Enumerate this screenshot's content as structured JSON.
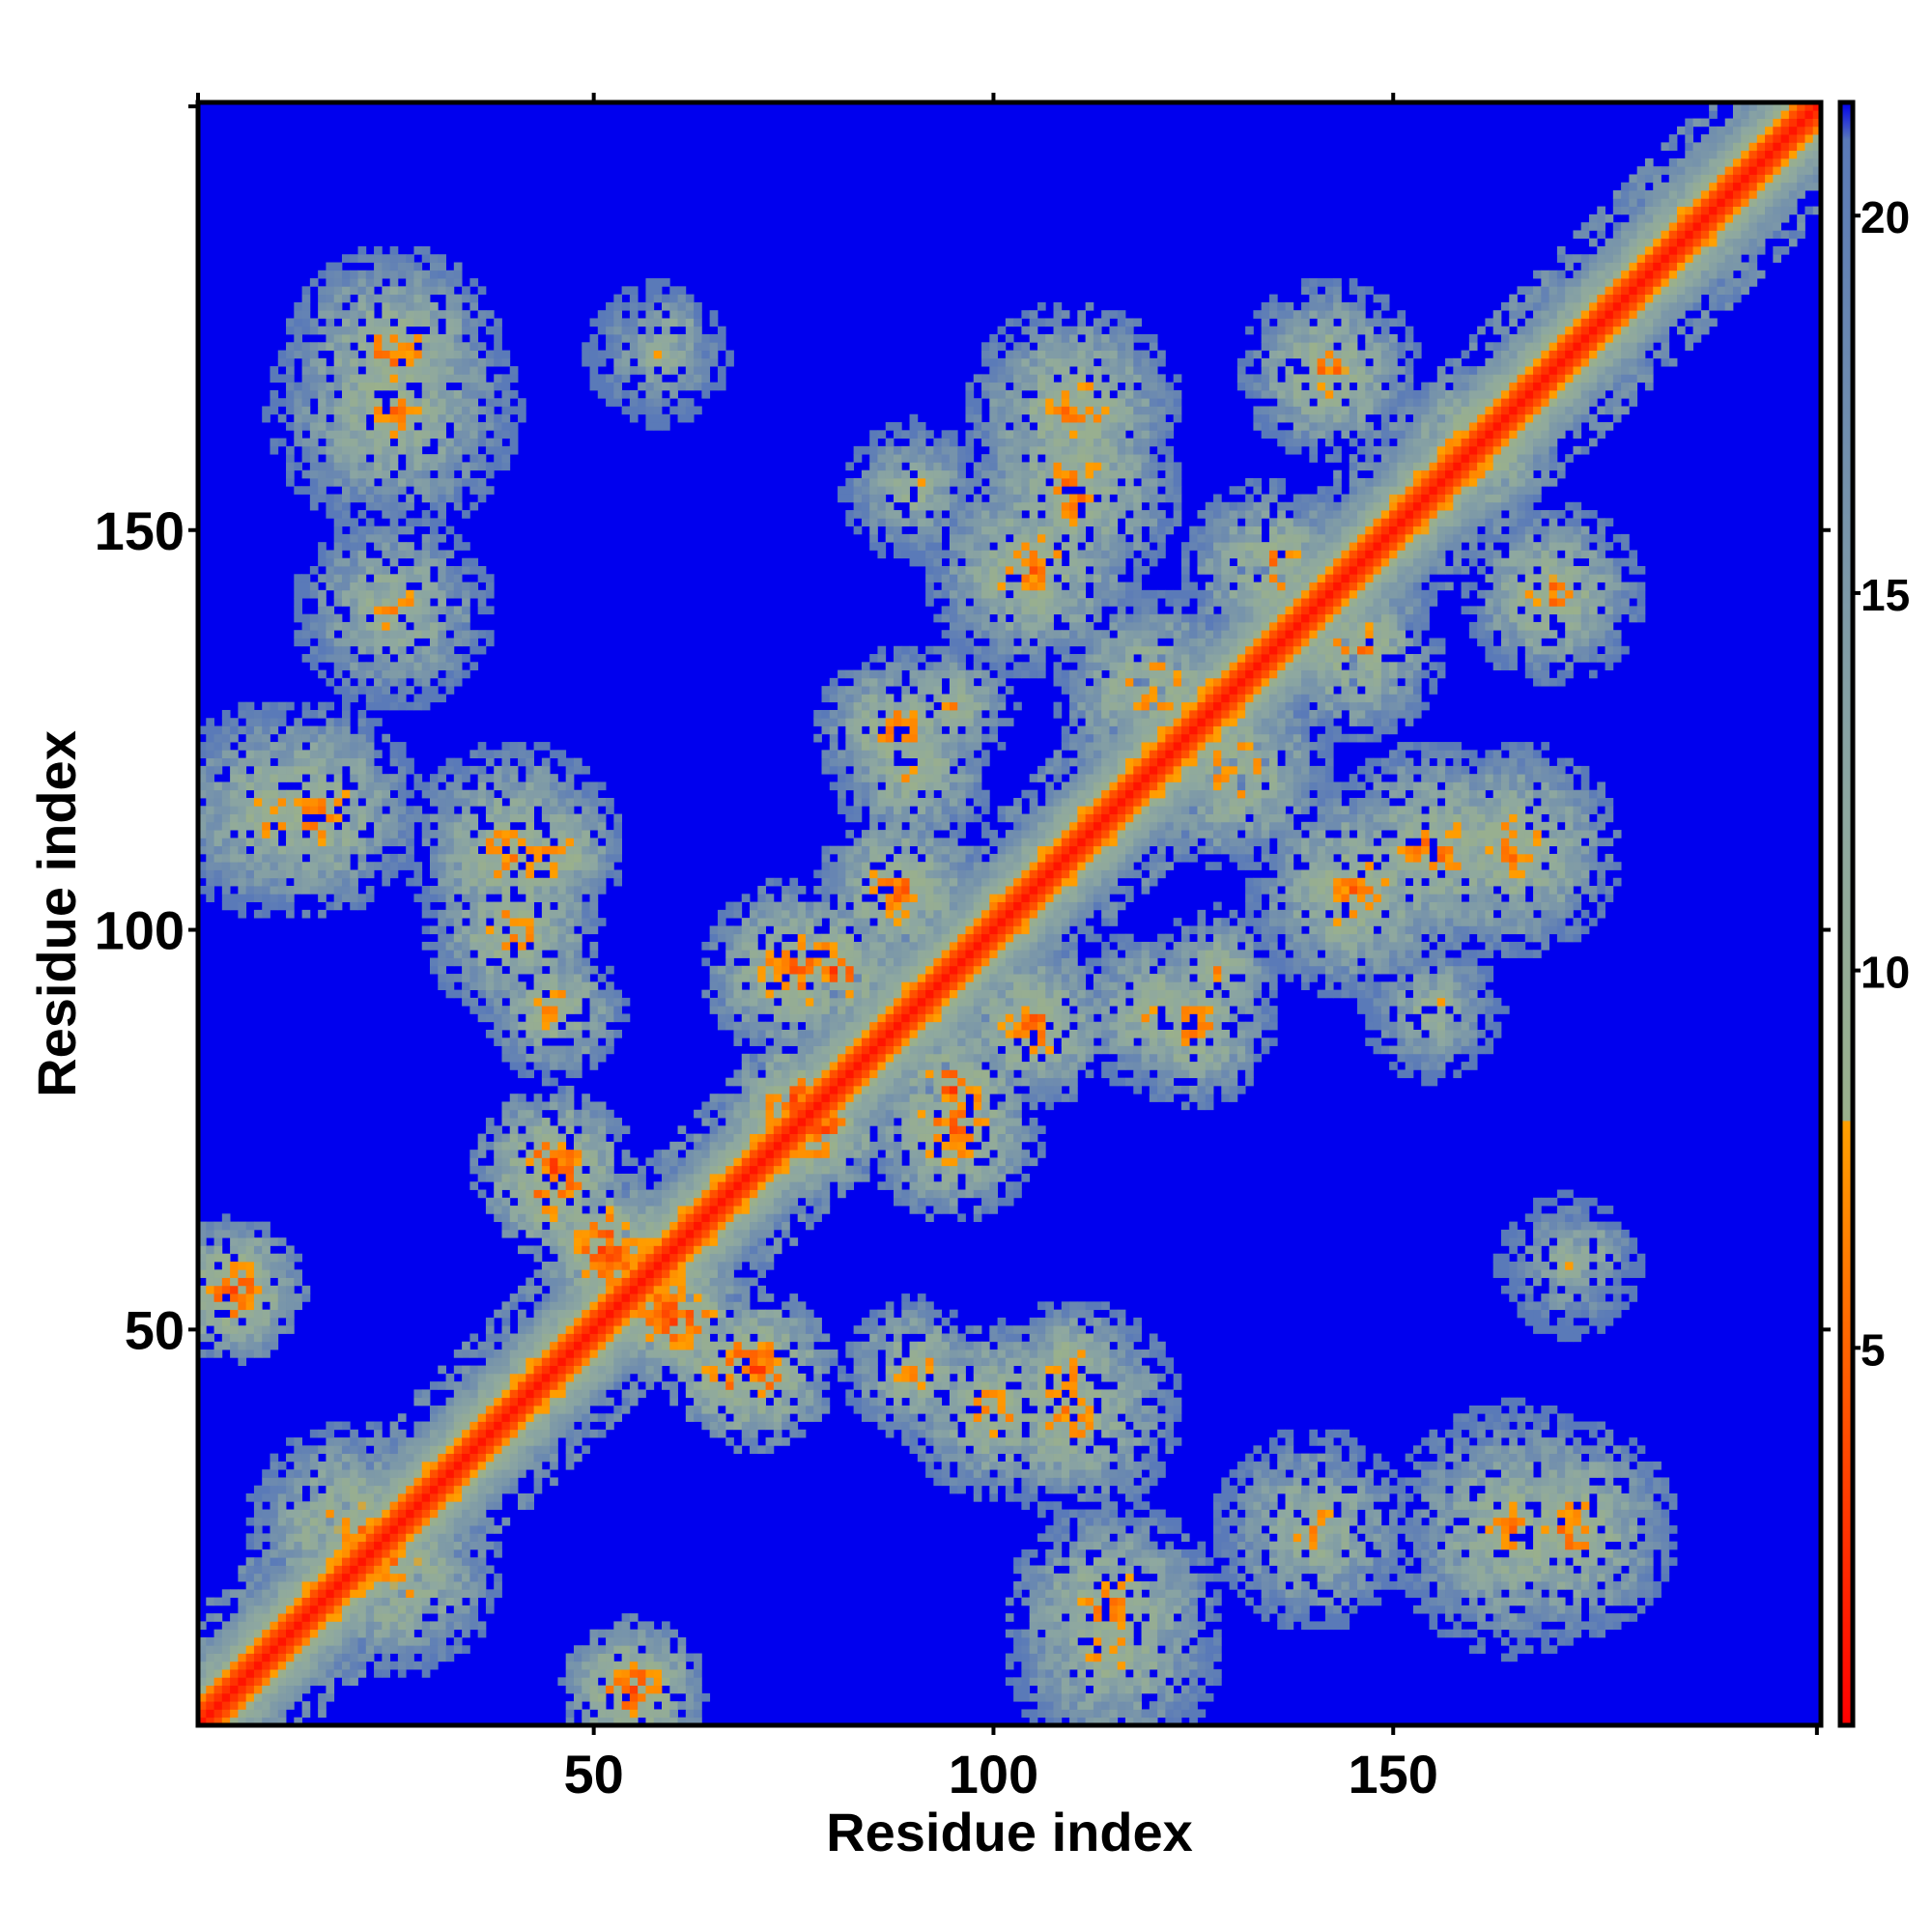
{
  "chart_data": {
    "type": "heatmap",
    "title": "",
    "xlabel": "Residue index",
    "ylabel": "Residue index",
    "xlim": [
      1,
      203
    ],
    "ylim": [
      1,
      203
    ],
    "x_ticks": [
      50,
      100,
      150
    ],
    "y_ticks": [
      50,
      100,
      150
    ],
    "colorbar": {
      "ticks": [
        5,
        10,
        15,
        20
      ],
      "range": [
        0,
        21.5
      ],
      "stops": [
        {
          "value": 0,
          "color": "#ff0000"
        },
        {
          "value": 4,
          "color": "#ff5000"
        },
        {
          "value": 8,
          "color": "#ffa000"
        },
        {
          "value": 8.01,
          "color": "#9ab08c"
        },
        {
          "value": 12,
          "color": "#8ea8a0"
        },
        {
          "value": 21,
          "color": "#5a7ab8"
        },
        {
          "value": 21.5,
          "color": "#0000ee"
        }
      ]
    },
    "background_color": "#0000ee",
    "matrix": {
      "size": 203,
      "symmetric": true,
      "diagonal_value": 1,
      "background_value": 22,
      "contact_bands": [
        {
          "i": [
            1,
            60
          ],
          "j": [
            1,
            60
          ],
          "note": "diagonal band"
        },
        {
          "i": [
            60,
            200
          ],
          "j": [
            60,
            200
          ],
          "note": "diagonal band"
        }
      ],
      "contact_patches": [
        {
          "center": [
            55,
            5
          ],
          "radius": 7,
          "min_value": 4
        },
        {
          "center": [
            25,
            20
          ],
          "radius": 12,
          "min_value": 6
        },
        {
          "center": [
            5,
            55
          ],
          "radius": 8,
          "min_value": 4
        },
        {
          "center": [
            45,
            68
          ],
          "radius": 8,
          "min_value": 4
        },
        {
          "center": [
            70,
            45
          ],
          "radius": 9,
          "min_value": 4
        },
        {
          "center": [
            60,
            52
          ],
          "radius": 8,
          "min_value": 3
        },
        {
          "center": [
            40,
            100
          ],
          "radius": 10,
          "min_value": 6
        },
        {
          "center": [
            15,
            115
          ],
          "radius": 12,
          "min_value": 6
        },
        {
          "center": [
            45,
            110
          ],
          "radius": 8,
          "min_value": 6
        },
        {
          "center": [
            25,
            140
          ],
          "radius": 11,
          "min_value": 7
        },
        {
          "center": [
            25,
            172
          ],
          "radius": 12,
          "min_value": 6
        },
        {
          "center": [
            60,
            175
          ],
          "radius": 5,
          "min_value": 9
        },
        {
          "center": [
            75,
            95
          ],
          "radius": 10,
          "min_value": 5
        },
        {
          "center": [
            90,
            120
          ],
          "radius": 9,
          "min_value": 7
        },
        {
          "center": [
            75,
            78
          ],
          "radius": 8,
          "min_value": 4
        },
        {
          "center": [
            95,
            80
          ],
          "radius": 8,
          "min_value": 4
        },
        {
          "center": [
            115,
            10
          ],
          "radius": 12,
          "min_value": 7
        },
        {
          "center": [
            110,
            40
          ],
          "radius": 12,
          "min_value": 6
        },
        {
          "center": [
            90,
            45
          ],
          "radius": 8,
          "min_value": 6
        },
        {
          "center": [
            105,
            88
          ],
          "radius": 9,
          "min_value": 5
        },
        {
          "center": [
            125,
            88
          ],
          "radius": 9,
          "min_value": 6
        },
        {
          "center": [
            110,
            155
          ],
          "radius": 12,
          "min_value": 6
        },
        {
          "center": [
            120,
            130
          ],
          "radius": 11,
          "min_value": 6
        },
        {
          "center": [
            145,
            105
          ],
          "radius": 12,
          "min_value": 6
        },
        {
          "center": [
            145,
            135
          ],
          "radius": 10,
          "min_value": 6
        },
        {
          "center": [
            165,
            110
          ],
          "radius": 12,
          "min_value": 6
        },
        {
          "center": [
            170,
            142
          ],
          "radius": 10,
          "min_value": 6
        },
        {
          "center": [
            160,
            160
          ],
          "radius": 9,
          "min_value": 5
        },
        {
          "center": [
            165,
            25
          ],
          "radius": 14,
          "min_value": 7
        },
        {
          "center": [
            140,
            25
          ],
          "radius": 10,
          "min_value": 7
        },
        {
          "center": [
            172,
            58
          ],
          "radius": 8,
          "min_value": 9
        },
        {
          "center": [
            155,
            90
          ],
          "radius": 8,
          "min_value": 8
        },
        {
          "center": [
            128,
            95
          ],
          "radius": 7,
          "min_value": 7
        }
      ]
    }
  }
}
